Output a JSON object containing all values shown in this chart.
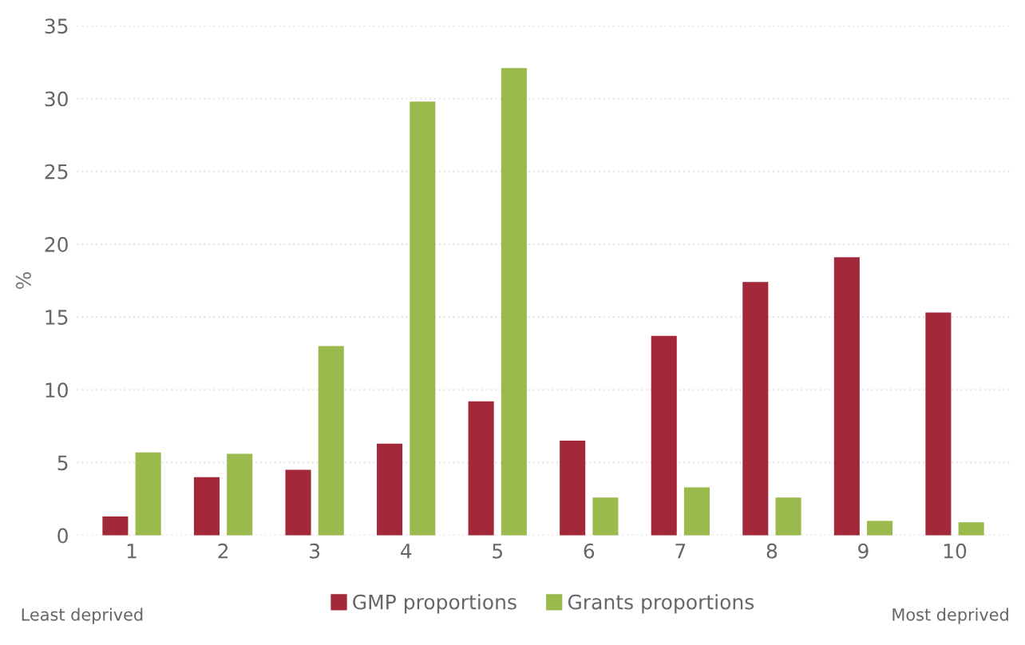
{
  "chart_data": {
    "type": "bar",
    "ylabel": "%",
    "categories": [
      "1",
      "2",
      "3",
      "4",
      "5",
      "6",
      "7",
      "8",
      "9",
      "10"
    ],
    "series": [
      {
        "name": "GMP proportions",
        "color": "#a3283a",
        "values": [
          1.3,
          4.0,
          4.5,
          6.3,
          9.2,
          6.5,
          13.7,
          17.4,
          19.1,
          15.3
        ]
      },
      {
        "name": "Grants proportions",
        "color": "#9bba4e",
        "values": [
          5.7,
          5.6,
          13.0,
          29.8,
          32.1,
          2.6,
          3.3,
          2.6,
          1.0,
          0.9
        ]
      }
    ],
    "ylim": [
      0,
      35
    ],
    "yticks": [
      0,
      5,
      10,
      15,
      20,
      25,
      30,
      35
    ],
    "grid": "y",
    "legend": "bottom",
    "annotations": [
      "Least deprived",
      "Most deprived"
    ]
  }
}
